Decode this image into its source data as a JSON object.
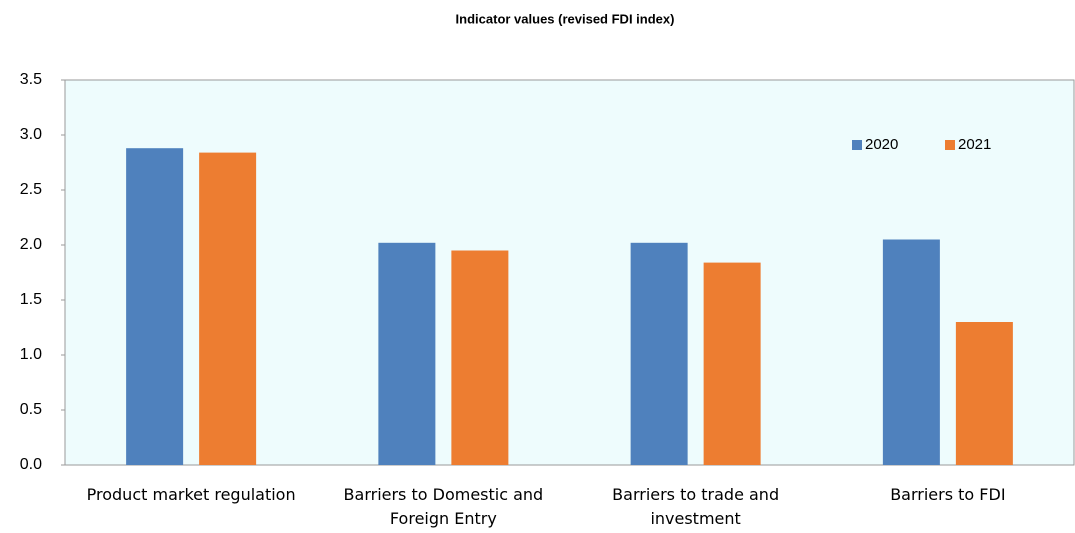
{
  "chart_data": {
    "type": "bar",
    "title": "Indicator values (revised FDI  index)",
    "categories": [
      "Product market regulation",
      "Barriers to Domestic and Foreign Entry",
      "Barriers to trade and investment",
      "Barriers to FDI"
    ],
    "series": [
      {
        "name": "2020",
        "color": "#4f81bd",
        "values": [
          2.88,
          2.02,
          2.02,
          2.05
        ]
      },
      {
        "name": "2021",
        "color": "#ed7d31",
        "values": [
          2.84,
          1.95,
          1.84,
          1.3
        ]
      }
    ],
    "ylim": [
      0,
      3.5
    ],
    "yticks": [
      {
        "value": 0,
        "label": "0.0"
      },
      0.5,
      {
        "value": 1,
        "label": "1.0"
      },
      1.5,
      {
        "value": 2,
        "label": "2.0"
      },
      2.5,
      {
        "value": 3,
        "label": "3.0"
      },
      3.5
    ],
    "grid": false,
    "legend": "upper right"
  }
}
